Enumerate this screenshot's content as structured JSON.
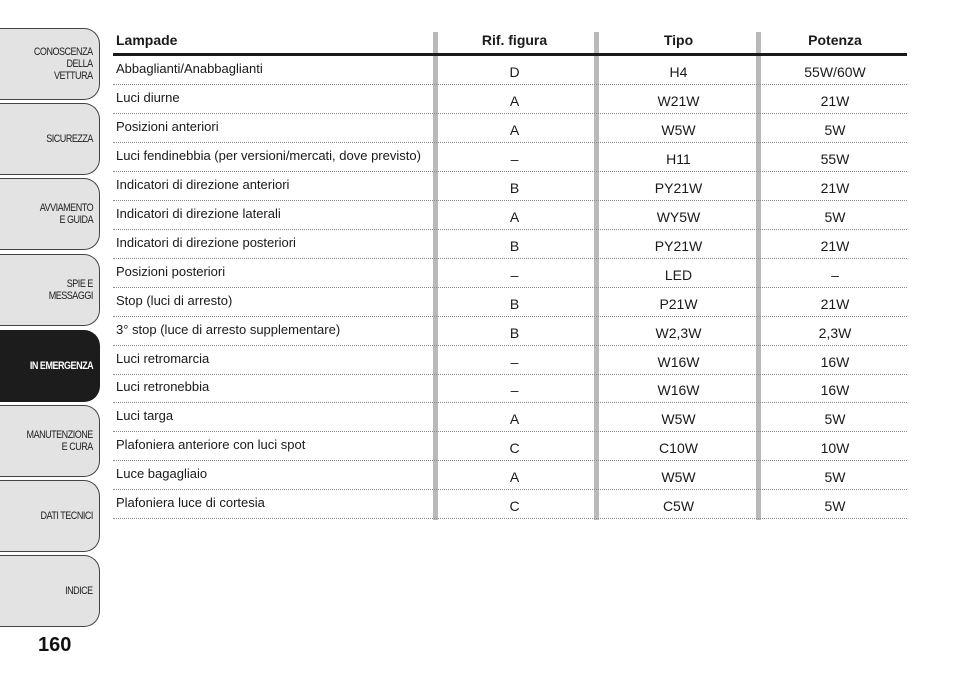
{
  "sidebar": {
    "tabs": [
      {
        "label": "CONOSCENZA\nDELLA\nVETTURA",
        "active": false
      },
      {
        "label": "SICUREZZA",
        "active": false
      },
      {
        "label": "AVVIAMENTO\nE GUIDA",
        "active": false
      },
      {
        "label": "SPIE E\nMESSAGGI",
        "active": false
      },
      {
        "label": "IN EMERGENZA",
        "active": true
      },
      {
        "label": "MANUTENZIONE\nE CURA",
        "active": false
      },
      {
        "label": "DATI TECNICI",
        "active": false
      },
      {
        "label": "INDICE",
        "active": false
      }
    ]
  },
  "page_number": "160",
  "table": {
    "headers": {
      "name": "Lampade",
      "ref": "Rif. figura",
      "type": "Tipo",
      "power": "Potenza"
    },
    "rows": [
      {
        "name": "Abbaglianti/Anabbaglianti",
        "ref": "D",
        "type": "H4",
        "power": "55W/60W"
      },
      {
        "name": "Luci diurne",
        "ref": "A",
        "type": "W21W",
        "power": "21W"
      },
      {
        "name": "Posizioni anteriori",
        "ref": "A",
        "type": "W5W",
        "power": "5W"
      },
      {
        "name": "Luci fendinebbia (per versioni/mercati, dove previsto)",
        "ref": "–",
        "type": "H11",
        "power": "55W"
      },
      {
        "name": "Indicatori di direzione anteriori",
        "ref": "B",
        "type": "PY21W",
        "power": "21W"
      },
      {
        "name": "Indicatori di direzione laterali",
        "ref": "A",
        "type": "WY5W",
        "power": "5W"
      },
      {
        "name": "Indicatori di direzione posteriori",
        "ref": "B",
        "type": "PY21W",
        "power": "21W"
      },
      {
        "name": "Posizioni posteriori",
        "ref": "–",
        "type": "LED",
        "power": "–"
      },
      {
        "name": "Stop (luci di arresto)",
        "ref": "B",
        "type": "P21W",
        "power": "21W"
      },
      {
        "name": "3° stop (luce di arresto supplementare)",
        "ref": "B",
        "type": "W2,3W",
        "power": "2,3W"
      },
      {
        "name": "Luci retromarcia",
        "ref": "–",
        "type": "W16W",
        "power": "16W"
      },
      {
        "name": "Luci retronebbia",
        "ref": "–",
        "type": "W16W",
        "power": "16W"
      },
      {
        "name": "Luci targa",
        "ref": "A",
        "type": "W5W",
        "power": "5W"
      },
      {
        "name": "Plafoniera anteriore con luci spot",
        "ref": "C",
        "type": "C10W",
        "power": "10W"
      },
      {
        "name": "Luce bagagliaio",
        "ref": "A",
        "type": "W5W",
        "power": "5W"
      },
      {
        "name": "Plafoniera luce di cortesia",
        "ref": "C",
        "type": "C5W",
        "power": "5W"
      }
    ]
  }
}
